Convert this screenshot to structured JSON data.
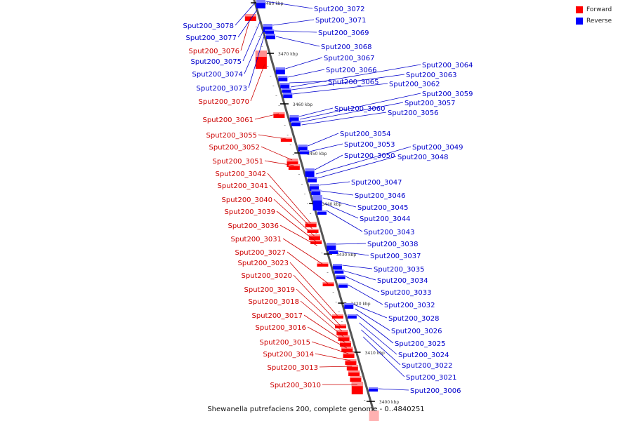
{
  "caption": "Shewanella putrefaciens 200, complete genome - 0..4840251",
  "legend": {
    "forward_label": "Forward",
    "reverse_label": "Reverse",
    "forward_color": "#ff0000",
    "reverse_color": "#0000ff"
  },
  "scale_ticks": [
    "3480 kbp",
    "3470 kbp",
    "3460 kbp",
    "3450 kbp",
    "3440 kbp",
    "3430 kbp",
    "3420 kbp",
    "3410 kbp",
    "3400 kbp"
  ],
  "genes": {
    "forward": [
      "Sput200_3076",
      "Sput200_3070",
      "Sput200_3061",
      "Sput200_3055",
      "Sput200_3052",
      "Sput200_3051",
      "Sput200_3042",
      "Sput200_3041",
      "Sput200_3040",
      "Sput200_3039",
      "Sput200_3036",
      "Sput200_3031",
      "Sput200_3027",
      "Sput200_3023",
      "Sput200_3020",
      "Sput200_3019",
      "Sput200_3018",
      "Sput200_3017",
      "Sput200_3016",
      "Sput200_3015",
      "Sput200_3014",
      "Sput200_3013",
      "Sput200_3010"
    ],
    "reverse_left": [
      "Sput200_3078",
      "Sput200_3077",
      "Sput200_3075",
      "Sput200_3074",
      "Sput200_3073"
    ],
    "reverse_right": [
      "Sput200_3072",
      "Sput200_3071",
      "Sput200_3069",
      "Sput200_3068",
      "Sput200_3067",
      "Sput200_3066",
      "Sput200_3065",
      "Sput200_3064",
      "Sput200_3063",
      "Sput200_3062",
      "Sput200_3060",
      "Sput200_3059",
      "Sput200_3057",
      "Sput200_3056",
      "Sput200_3054",
      "Sput200_3053",
      "Sput200_3050",
      "Sput200_3049",
      "Sput200_3048",
      "Sput200_3047",
      "Sput200_3046",
      "Sput200_3045",
      "Sput200_3044",
      "Sput200_3043",
      "Sput200_3038",
      "Sput200_3037",
      "Sput200_3035",
      "Sput200_3034",
      "Sput200_3033",
      "Sput200_3032",
      "Sput200_3028",
      "Sput200_3026",
      "Sput200_3025",
      "Sput200_3024",
      "Sput200_3022",
      "Sput200_3021",
      "Sput200_3006"
    ]
  }
}
